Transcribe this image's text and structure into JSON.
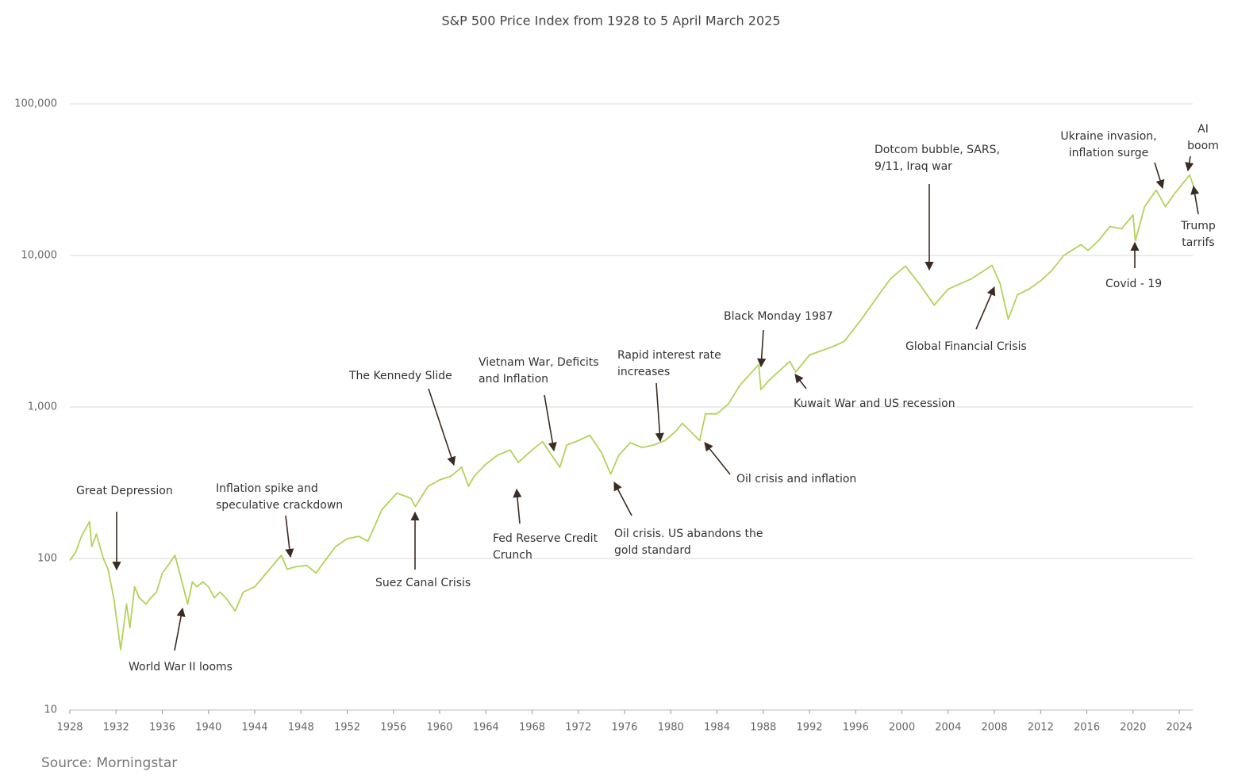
{
  "chart_data": {
    "type": "line",
    "title": "S&P 500 Price Index from 1928 to 5 April March 2025",
    "source": "Source: Morningstar",
    "log_y": true,
    "grid": true,
    "color": "#b3d25a",
    "xlim": [
      1928,
      2025.3
    ],
    "ylim": [
      10,
      100000
    ],
    "xticks": [
      1928,
      1932,
      1936,
      1940,
      1944,
      1948,
      1952,
      1956,
      1960,
      1964,
      1968,
      1972,
      1976,
      1980,
      1984,
      1988,
      1992,
      1996,
      2000,
      2004,
      2008,
      2012,
      2016,
      2020,
      2024
    ],
    "yticks": [
      10,
      100,
      {
        "value": 1000,
        "label": "1,000"
      },
      {
        "value": 10000,
        "label": "10,000"
      },
      {
        "value": 100000,
        "label": "100,000"
      }
    ],
    "x": [
      1928.0,
      1928.5,
      1929.0,
      1929.7,
      1929.9,
      1930.3,
      1930.9,
      1931.3,
      1931.8,
      1932.4,
      1932.9,
      1933.2,
      1933.6,
      1934.0,
      1934.6,
      1935.0,
      1935.5,
      1936.0,
      1936.5,
      1937.1,
      1937.5,
      1938.2,
      1938.6,
      1939.0,
      1939.5,
      1940.0,
      1940.5,
      1941.0,
      1941.5,
      1942.3,
      1943.0,
      1944.0,
      1945.0,
      1946.3,
      1946.8,
      1947.5,
      1948.5,
      1949.3,
      1950.0,
      1951.0,
      1952.0,
      1953.0,
      1953.8,
      1955.0,
      1956.3,
      1957.5,
      1957.9,
      1959.0,
      1960.0,
      1961.0,
      1961.9,
      1962.5,
      1963.0,
      1964.0,
      1965.0,
      1966.1,
      1966.8,
      1968.0,
      1968.9,
      1970.4,
      1971.0,
      1972.0,
      1973.0,
      1974.0,
      1974.8,
      1975.5,
      1976.5,
      1977.5,
      1978.5,
      1979.5,
      1980.5,
      1981.0,
      1982.5,
      1983.0,
      1984.0,
      1985.0,
      1986.0,
      1987.6,
      1987.8,
      1988.5,
      1990.3,
      1990.8,
      1992.0,
      1994.0,
      1995.0,
      1996.5,
      1998.0,
      1999.0,
      2000.3,
      2001.5,
      2002.8,
      2004.0,
      2006.0,
      2007.8,
      2008.5,
      2009.2,
      2010.0,
      2011.0,
      2012.0,
      2013.0,
      2014.0,
      2015.5,
      2016.1,
      2017.0,
      2018.0,
      2019.0,
      2020.0,
      2020.2,
      2021.0,
      2022.0,
      2022.8,
      2023.5,
      2024.0,
      2024.9,
      2025.27
    ],
    "series": [
      {
        "name": "S&P 500 Price Index",
        "values": [
          97,
          110,
          140,
          175,
          120,
          145,
          100,
          85,
          55,
          25,
          50,
          35,
          65,
          55,
          50,
          55,
          60,
          80,
          90,
          105,
          80,
          50,
          70,
          65,
          70,
          65,
          55,
          60,
          55,
          45,
          60,
          65,
          80,
          105,
          85,
          88,
          90,
          80,
          95,
          120,
          135,
          140,
          130,
          210,
          270,
          250,
          220,
          300,
          330,
          350,
          400,
          300,
          350,
          420,
          480,
          520,
          430,
          520,
          590,
          400,
          560,
          600,
          650,
          500,
          360,
          480,
          580,
          540,
          560,
          600,
          700,
          780,
          600,
          900,
          900,
          1050,
          1400,
          1900,
          1300,
          1500,
          2000,
          1700,
          2200,
          2500,
          2700,
          3800,
          5500,
          7000,
          8500,
          6500,
          4700,
          6000,
          7000,
          8600,
          6500,
          3800,
          5500,
          6000,
          6800,
          8000,
          10000,
          11800,
          10800,
          12500,
          15500,
          15000,
          18500,
          12500,
          21000,
          27000,
          21000,
          25000,
          28000,
          34000,
          28000
        ]
      }
    ],
    "annotations": [
      [
        "Great Depression"
      ],
      [
        "World War II looms"
      ],
      [
        "Inflation spike and",
        "speculative crackdown"
      ],
      [
        "Suez Canal Crisis"
      ],
      [
        "The Kennedy Slide"
      ],
      [
        "Vietnam War, Deficits",
        "and Inflation"
      ],
      [
        "Fed Reserve Credit",
        "Crunch"
      ],
      [
        "Rapid interest rate",
        "increases"
      ],
      [
        "Oil crisis. US abandons the",
        "gold standard"
      ],
      [
        "Oil crisis and inflation"
      ],
      [
        "Black Monday 1987"
      ],
      [
        "Kuwait War and US recession"
      ],
      [
        "Dotcom bubble, SARS,",
        "9/11, Iraq war"
      ],
      [
        "Global Financial Crisis"
      ],
      [
        "Ukraine invasion,",
        "inflation surge"
      ],
      [
        "AI",
        "boom"
      ],
      [
        "Trump",
        "tarrifs"
      ],
      [
        "Covid - 19"
      ]
    ]
  }
}
